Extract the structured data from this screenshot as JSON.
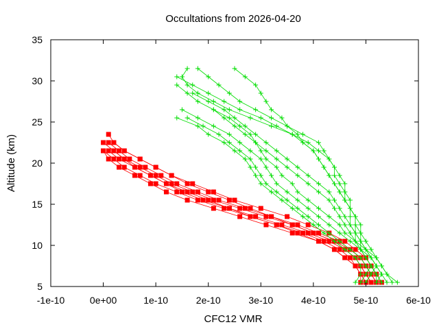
{
  "chart_data": {
    "type": "scatter",
    "title": "Occultations from 2026-04-20",
    "xlabel": "CFC12 VMR",
    "ylabel": "Altitude (km)",
    "xlim": [
      -1e-10,
      6e-10
    ],
    "ylim": [
      5,
      35
    ],
    "grid": false,
    "legend": "none",
    "x_ticks": [
      {
        "v": -1e-10,
        "label": "-1e-10"
      },
      {
        "v": 0,
        "label": "0e+00"
      },
      {
        "v": 1e-10,
        "label": "1e-10"
      },
      {
        "v": 2e-10,
        "label": "2e-10"
      },
      {
        "v": 3e-10,
        "label": "3e-10"
      },
      {
        "v": 4e-10,
        "label": "4e-10"
      },
      {
        "v": 5e-10,
        "label": "5e-10"
      },
      {
        "v": 6e-10,
        "label": "6e-10"
      }
    ],
    "y_ticks": [
      {
        "v": 5,
        "label": "5"
      },
      {
        "v": 10,
        "label": "10"
      },
      {
        "v": 15,
        "label": "15"
      },
      {
        "v": 20,
        "label": "20"
      },
      {
        "v": 25,
        "label": "25"
      },
      {
        "v": 30,
        "label": "30"
      },
      {
        "v": 35,
        "label": "35"
      }
    ],
    "y_levels": [
      5.5,
      6.5,
      7.5,
      8.5,
      9.5,
      10.5,
      11.5,
      12.5,
      13.5,
      14.5,
      15.5,
      16.5,
      17.5,
      18.5,
      19.5,
      20.5,
      21.5,
      22.5,
      23.5,
      24.5,
      25.5,
      26.5,
      27.5,
      28.5,
      29.5,
      30.5,
      31.5
    ],
    "series": [
      {
        "color": "#ff0000",
        "marker": "square",
        "profiles": [
          [
            4.9e-10,
            4.9e-10,
            4.8e-10,
            4.7e-10,
            4.5e-10,
            4.2e-10,
            3.8e-10,
            3.3e-10,
            2.8e-10,
            2.3e-10,
            1.8e-10,
            1.4e-10,
            1e-10,
            7e-11,
            4e-11,
            2e-11,
            0.0,
            null,
            null,
            null,
            null,
            null,
            null,
            null,
            null,
            null,
            null
          ],
          [
            5e-10,
            4.9e-10,
            4.8e-10,
            4.6e-10,
            4.4e-10,
            4.1e-10,
            3.6e-10,
            3.1e-10,
            2.6e-10,
            2.1e-10,
            1.6e-10,
            1.2e-10,
            9e-11,
            6e-11,
            3e-11,
            1e-11,
            0.0,
            null,
            null,
            null,
            null,
            null,
            null,
            null,
            null,
            null,
            null
          ],
          [
            5.1e-10,
            5e-10,
            4.9e-10,
            4.8e-10,
            4.6e-10,
            4.3e-10,
            3.9e-10,
            3.4e-10,
            2.9e-10,
            2.4e-10,
            1.9e-10,
            1.5e-10,
            1.2e-10,
            9e-11,
            6e-11,
            4e-11,
            2e-11,
            null,
            null,
            null,
            null,
            null,
            null,
            null,
            null,
            null,
            null
          ],
          [
            5.2e-10,
            5.1e-10,
            5e-10,
            4.9e-10,
            4.7e-10,
            4.5e-10,
            4.1e-10,
            3.7e-10,
            3.2e-10,
            2.7e-10,
            2.2e-10,
            1.8e-10,
            1.4e-10,
            1.1e-10,
            8e-11,
            5e-11,
            3e-11,
            1e-11,
            null,
            null,
            null,
            null,
            null,
            null,
            null,
            null,
            null
          ],
          [
            5.3e-10,
            5.2e-10,
            5.1e-10,
            5e-10,
            4.8e-10,
            4.6e-10,
            4.3e-10,
            3.9e-10,
            3.5e-10,
            3e-10,
            2.5e-10,
            2.1e-10,
            1.7e-10,
            1.3e-10,
            1e-10,
            7e-11,
            4e-11,
            2e-11,
            1e-11,
            null,
            null,
            null,
            null,
            null,
            null,
            null,
            null
          ],
          [
            5.2e-10,
            5.1e-10,
            5e-10,
            4.9e-10,
            4.7e-10,
            4.4e-10,
            4e-10,
            3.6e-10,
            3.1e-10,
            2.6e-10,
            2.1e-10,
            1.7e-10,
            1.3e-10,
            1e-10,
            7e-11,
            4e-11,
            2e-11,
            0.0,
            null,
            null,
            null,
            null,
            null,
            null,
            null,
            null,
            null
          ],
          [
            5.1e-10,
            5e-10,
            4.9e-10,
            4.8e-10,
            4.6e-10,
            4.4e-10,
            4e-10,
            3.6e-10,
            3.2e-10,
            2.8e-10,
            2.4e-10,
            2e-10,
            1.6e-10,
            1.3e-10,
            1e-10,
            7e-11,
            4e-11,
            2e-11,
            null,
            null,
            null,
            null,
            null,
            null,
            null,
            null,
            null
          ],
          [
            5e-10,
            4.9e-10,
            4.8e-10,
            4.6e-10,
            4.4e-10,
            4.1e-10,
            3.7e-10,
            3.3e-10,
            2.8e-10,
            2.4e-10,
            2e-10,
            1.6e-10,
            1.2e-10,
            9e-11,
            6e-11,
            3e-11,
            1e-11,
            null,
            null,
            null,
            null,
            null,
            null,
            null,
            null,
            null,
            null
          ]
        ]
      },
      {
        "color": "#00dd00",
        "marker": "plus",
        "profiles": [
          [
            4.8e-10,
            4.9e-10,
            4.9e-10,
            4.8e-10,
            4.6e-10,
            4.4e-10,
            4.2e-10,
            4e-10,
            3.8e-10,
            3.6e-10,
            3.4e-10,
            3.2e-10,
            3e-10,
            2.9e-10,
            2.8e-10,
            2.7e-10,
            2.5e-10,
            2.3e-10,
            2e-10,
            1.8e-10,
            1.4e-10,
            null,
            null,
            null,
            null,
            null,
            null
          ],
          [
            5e-10,
            5.1e-10,
            5e-10,
            4.9e-10,
            4.7e-10,
            4.5e-10,
            4.3e-10,
            4.1e-10,
            3.9e-10,
            3.7e-10,
            3.5e-10,
            3.3e-10,
            3.1e-10,
            3e-10,
            2.9e-10,
            2.8e-10,
            2.6e-10,
            2.4e-10,
            2.2e-10,
            1.9e-10,
            1.6e-10,
            null,
            null,
            null,
            null,
            null,
            null
          ],
          [
            5.2e-10,
            5.3e-10,
            5.2e-10,
            5.1e-10,
            4.9e-10,
            4.7e-10,
            4.5e-10,
            4.3e-10,
            4.1e-10,
            3.9e-10,
            3.7e-10,
            3.5e-10,
            3.3e-10,
            3.2e-10,
            3.1e-10,
            3e-10,
            2.8e-10,
            2.6e-10,
            2.4e-10,
            2.1e-10,
            1.8e-10,
            1.5e-10,
            null,
            null,
            null,
            null,
            null
          ],
          [
            5.6e-10,
            5.4e-10,
            5.3e-10,
            5.2e-10,
            5e-10,
            4.8e-10,
            4.6e-10,
            4.5e-10,
            4.3e-10,
            4.1e-10,
            3.9e-10,
            3.7e-10,
            3.6e-10,
            3.4e-10,
            3.3e-10,
            3.1e-10,
            3e-10,
            2.9e-10,
            2.8e-10,
            2.6e-10,
            2.4e-10,
            2.1e-10,
            null,
            null,
            null,
            null,
            null
          ],
          [
            4.9e-10,
            5e-10,
            5.1e-10,
            5e-10,
            4.9e-10,
            4.8e-10,
            4.7e-10,
            4.6e-10,
            4.5e-10,
            4.4e-10,
            4.3e-10,
            4.1e-10,
            3.9e-10,
            3.7e-10,
            3.5e-10,
            3.3e-10,
            3.1e-10,
            2.9e-10,
            2.7e-10,
            2.5e-10,
            2.3e-10,
            2.1e-10,
            1.8e-10,
            1.6e-10,
            1.4e-10,
            null,
            null
          ],
          [
            5e-10,
            5.1e-10,
            5.2e-10,
            5.1e-10,
            5e-10,
            4.9e-10,
            4.8e-10,
            4.7e-10,
            4.6e-10,
            4.5e-10,
            4.4e-10,
            4.3e-10,
            4.1e-10,
            3.9e-10,
            3.7e-10,
            3.5e-10,
            3.3e-10,
            3.1e-10,
            2.9e-10,
            2.7e-10,
            2.5e-10,
            2.3e-10,
            2e-10,
            1.7e-10,
            null,
            null,
            null
          ],
          [
            5.2e-10,
            5.2e-10,
            5.1e-10,
            5e-10,
            4.9e-10,
            4.8e-10,
            4.8e-10,
            4.7e-10,
            4.7e-10,
            4.7e-10,
            4.6e-10,
            4.5e-10,
            4.4e-10,
            4.3e-10,
            4.2e-10,
            4.1e-10,
            4e-10,
            3.8e-10,
            3.6e-10,
            3.3e-10,
            3e-10,
            2.6e-10,
            2.3e-10,
            2e-10,
            1.7e-10,
            1.4e-10,
            null
          ],
          [
            5.3e-10,
            5.2e-10,
            5.1e-10,
            5e-10,
            4.9e-10,
            4.9e-10,
            4.8e-10,
            4.8e-10,
            4.8e-10,
            4.7e-10,
            4.7e-10,
            4.6e-10,
            4.6e-10,
            4.5e-10,
            4.4e-10,
            4.3e-10,
            4.1e-10,
            3.9e-10,
            3.6e-10,
            3.2e-10,
            2.8e-10,
            2.4e-10,
            2.1e-10,
            1.8e-10,
            1.6e-10,
            1.5e-10,
            1.6e-10
          ],
          [
            5.4e-10,
            5.3e-10,
            5.2e-10,
            5.1e-10,
            5e-10,
            4.9e-10,
            4.9e-10,
            4.8e-10,
            4.8e-10,
            4.7e-10,
            4.6e-10,
            4.6e-10,
            4.5e-10,
            4.4e-10,
            4.4e-10,
            4.3e-10,
            4.2e-10,
            4.1e-10,
            3.8e-10,
            3.5e-10,
            3.2e-10,
            2.9e-10,
            2.6e-10,
            2.4e-10,
            2.2e-10,
            2e-10,
            1.8e-10
          ],
          [
            5.5e-10,
            5.4e-10,
            5.3e-10,
            5.2e-10,
            5.1e-10,
            5e-10,
            4.9e-10,
            4.9e-10,
            4.8e-10,
            4.7e-10,
            4.6e-10,
            4.5e-10,
            4.4e-10,
            4.3e-10,
            4.2e-10,
            4.1e-10,
            4e-10,
            3.8e-10,
            3.7e-10,
            3.5e-10,
            3.4e-10,
            3.2e-10,
            3.1e-10,
            3e-10,
            2.9e-10,
            2.7e-10,
            2.5e-10
          ]
        ]
      }
    ]
  }
}
